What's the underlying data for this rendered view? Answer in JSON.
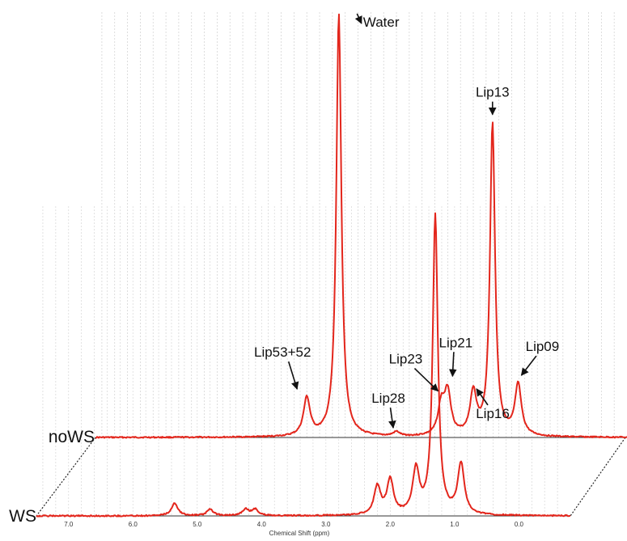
{
  "chart_data": {
    "type": "line",
    "title": "",
    "xlabel": "Chemical Shift (ppm)",
    "ylabel": "",
    "x_reversed": true,
    "xlim": [
      7.5,
      -0.8
    ],
    "x_ticks": [
      "7.0",
      "6.0",
      "5.0",
      "4.0",
      "3.0",
      "2.0",
      "1.0",
      "0.0"
    ],
    "grid": true,
    "y_units": "relative intensity (0-1, peak of Water = 1)",
    "series": [
      {
        "name": "noWS",
        "peaks": [
          {
            "label": "Lip53+52",
            "ppm": 4.2,
            "height": 0.09
          },
          {
            "label": "Water",
            "ppm": 3.7,
            "height": 1.0
          },
          {
            "label": "Lip28",
            "ppm": 2.8,
            "height": 0.01
          },
          {
            "label": "Lip23",
            "ppm": 2.1,
            "height": 0.07
          },
          {
            "label": "Lip21",
            "ppm": 2.0,
            "height": 0.1
          },
          {
            "label": "Lip16",
            "ppm": 1.6,
            "height": 0.1
          },
          {
            "label": "Lip13",
            "ppm": 1.3,
            "height": 0.74
          },
          {
            "label": "Lip09",
            "ppm": 0.9,
            "height": 0.12
          }
        ]
      },
      {
        "name": "WS",
        "peaks": [
          {
            "ppm": 5.35,
            "height": 0.04
          },
          {
            "ppm": 4.8,
            "height": 0.02
          },
          {
            "ppm": 4.25,
            "height": 0.02
          },
          {
            "ppm": 4.1,
            "height": 0.02
          },
          {
            "ppm": 2.2,
            "height": 0.09
          },
          {
            "ppm": 2.0,
            "height": 0.11
          },
          {
            "ppm": 1.6,
            "height": 0.14
          },
          {
            "ppm": 1.3,
            "height": 0.95
          },
          {
            "ppm": 0.9,
            "height": 0.16
          }
        ]
      }
    ]
  }
}
